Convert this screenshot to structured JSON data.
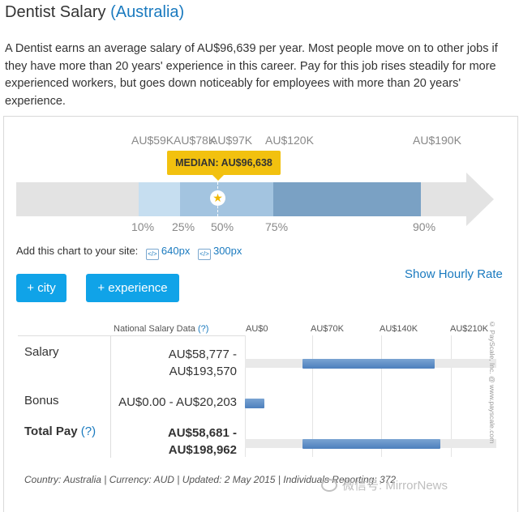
{
  "header": {
    "title": "Dentist Salary",
    "country": "(Australia)"
  },
  "description": "A Dentist earns an average salary of AU$96,639 per year. Most people move on to other jobs if they have more than 20 years' experience in this career. Pay for this job rises steadily for more experienced workers, but goes down noticeably for employees with more than 20 years' experience.",
  "range_chart": {
    "value_labels": [
      "AU$59K",
      "AU$78K",
      "AU$97K",
      "AU$120K",
      "AU$190K"
    ],
    "percentile_labels": [
      "10%",
      "25%",
      "50%",
      "75%",
      "90%"
    ],
    "median_label": "MEDIAN: AU$96,638",
    "median_icon": "star-icon",
    "colors": {
      "track": "#e3e3e3",
      "p10_p25": "#c6def0",
      "p25_p75": "#a3c4e0",
      "p75_p90": "#7aa1c4",
      "median_badge": "#f2c10f"
    }
  },
  "add_chart": {
    "label": "Add this chart to your site:",
    "link1": "640px",
    "link2": "300px",
    "icon": "embed-code-icon"
  },
  "show_hourly": "Show Hourly Rate",
  "buttons": {
    "city": "+ city",
    "experience": "+ experience",
    "color": "#10a3e8"
  },
  "table": {
    "header": "National Salary Data",
    "header_help": "(?)",
    "scale": [
      "AU$0",
      "AU$70K",
      "AU$140K",
      "AU$210K"
    ],
    "rows": [
      {
        "label": "Salary",
        "range_line1": "AU$58,777 -",
        "range_line2": "AU$193,570",
        "min": 58777,
        "max": 193570
      },
      {
        "label": "Bonus",
        "range": "AU$0.00 - AU$20,203",
        "min": 0,
        "max": 20203
      },
      {
        "label": "Total Pay",
        "help": "(?)",
        "range_line1": "AU$58,681 -",
        "range_line2": "AU$198,962",
        "min": 58681,
        "max": 198962
      }
    ],
    "scale_max": 210000
  },
  "copyright": "© PayScale, Inc. @ www.payscale.com",
  "footer": "Country: Australia | Currency: AUD | Updated: 2 May 2015 | Individuals Reporting: 372",
  "watermark": "微信号: MirrorNews"
}
